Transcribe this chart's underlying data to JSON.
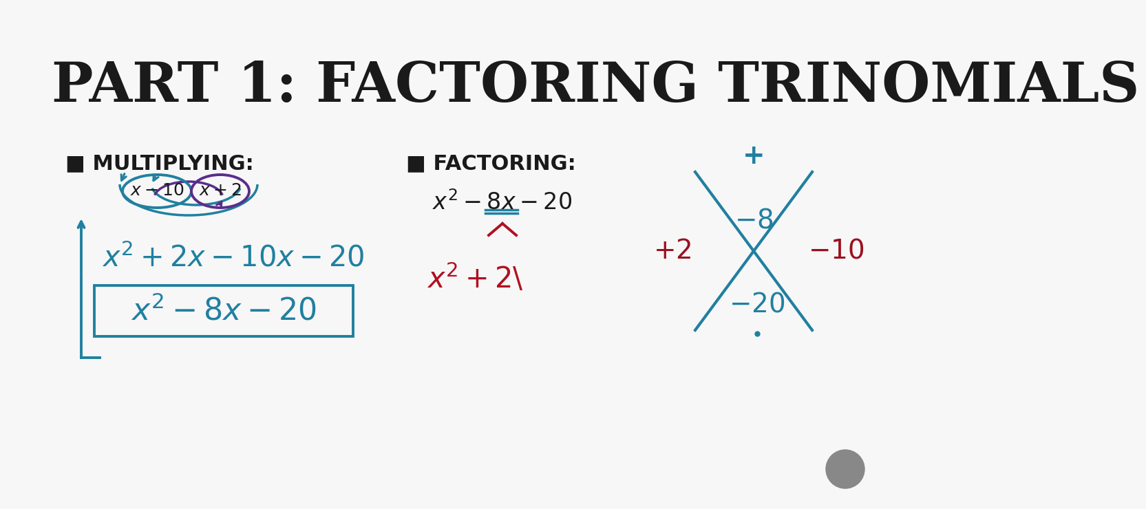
{
  "title": "PART 1: FACTORING TRINOMIALS",
  "title_color": "#1a1a1a",
  "title_fontsize": 58,
  "bg_color": "#f7f7f7",
  "multiplying_label": "■ MULTIPLYING:",
  "factoring_label": "■ FACTORING:",
  "label_color": "#1a1a1a",
  "label_fontsize": 22,
  "teal_color": "#2080a0",
  "purple_color": "#5a2d8a",
  "dark_red_color": "#9a1020",
  "crimson_color": "#b01020"
}
